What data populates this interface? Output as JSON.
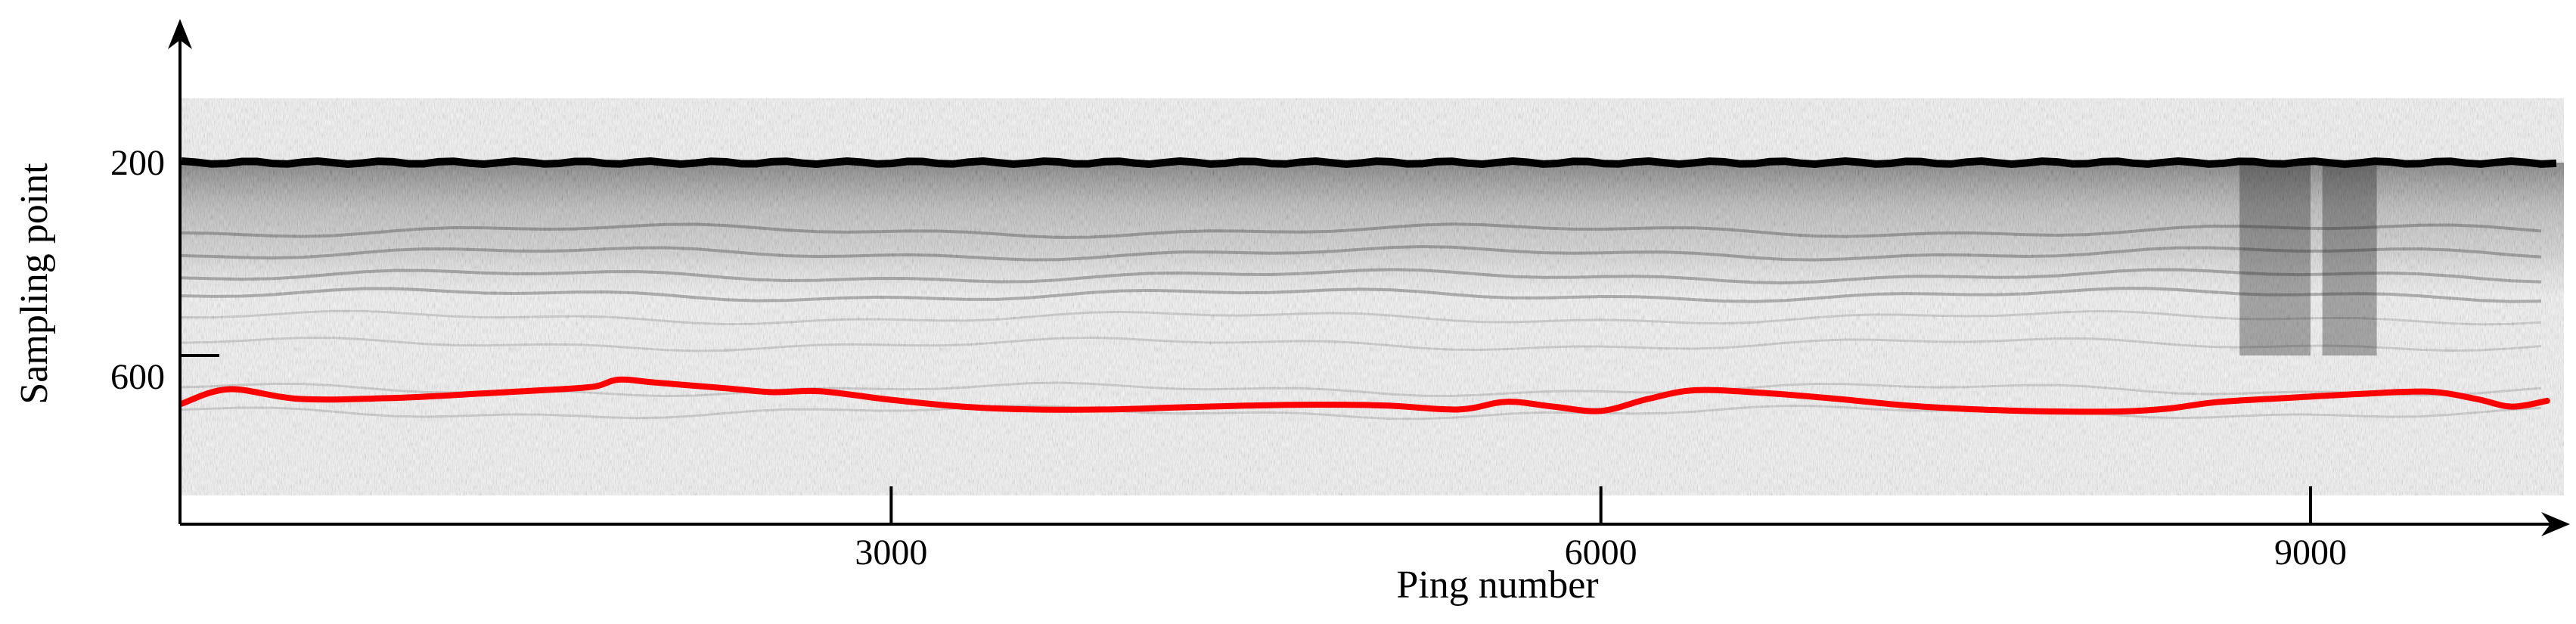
{
  "chart_data": {
    "type": "line",
    "title": "",
    "xlabel": "Ping number",
    "ylabel": "Sampling point",
    "xlim": [
      0,
      10000
    ],
    "ylim": [
      1000,
      0
    ],
    "y_axis_inverted": true,
    "grid": false,
    "legend": "none",
    "x_ticks": [
      {
        "value": 3000,
        "label": "3000"
      },
      {
        "value": 6000,
        "label": "6000"
      },
      {
        "value": 9000,
        "label": "9000"
      }
    ],
    "y_ticks": [
      {
        "value": 200,
        "label": "200"
      },
      {
        "value": 600,
        "label": "600"
      }
    ],
    "background": "grayscale sonar echogram",
    "surface_echo": {
      "sampling_point": 200,
      "color": "#000000"
    },
    "series": [
      {
        "color": "#ff0000",
        "x": [
          0,
          200,
          500,
          900,
          1300,
          1600,
          1750,
          1850,
          2000,
          2300,
          2500,
          2700,
          3000,
          3300,
          3600,
          3900,
          4200,
          4500,
          4800,
          5100,
          5400,
          5600,
          5800,
          6000,
          6200,
          6400,
          6700,
          7000,
          7300,
          7600,
          7900,
          8200,
          8400,
          8600,
          8900,
          9200,
          9500,
          9700,
          9850,
          10000
        ],
        "y": [
          700,
          670,
          690,
          688,
          678,
          670,
          664,
          650,
          656,
          668,
          676,
          674,
          692,
          706,
          712,
          712,
          708,
          704,
          702,
          704,
          712,
          696,
          706,
          715,
          690,
          672,
          678,
          690,
          704,
          712,
          716,
          716,
          710,
          697,
          688,
          680,
          675,
          690,
          706,
          694
        ]
      }
    ]
  }
}
